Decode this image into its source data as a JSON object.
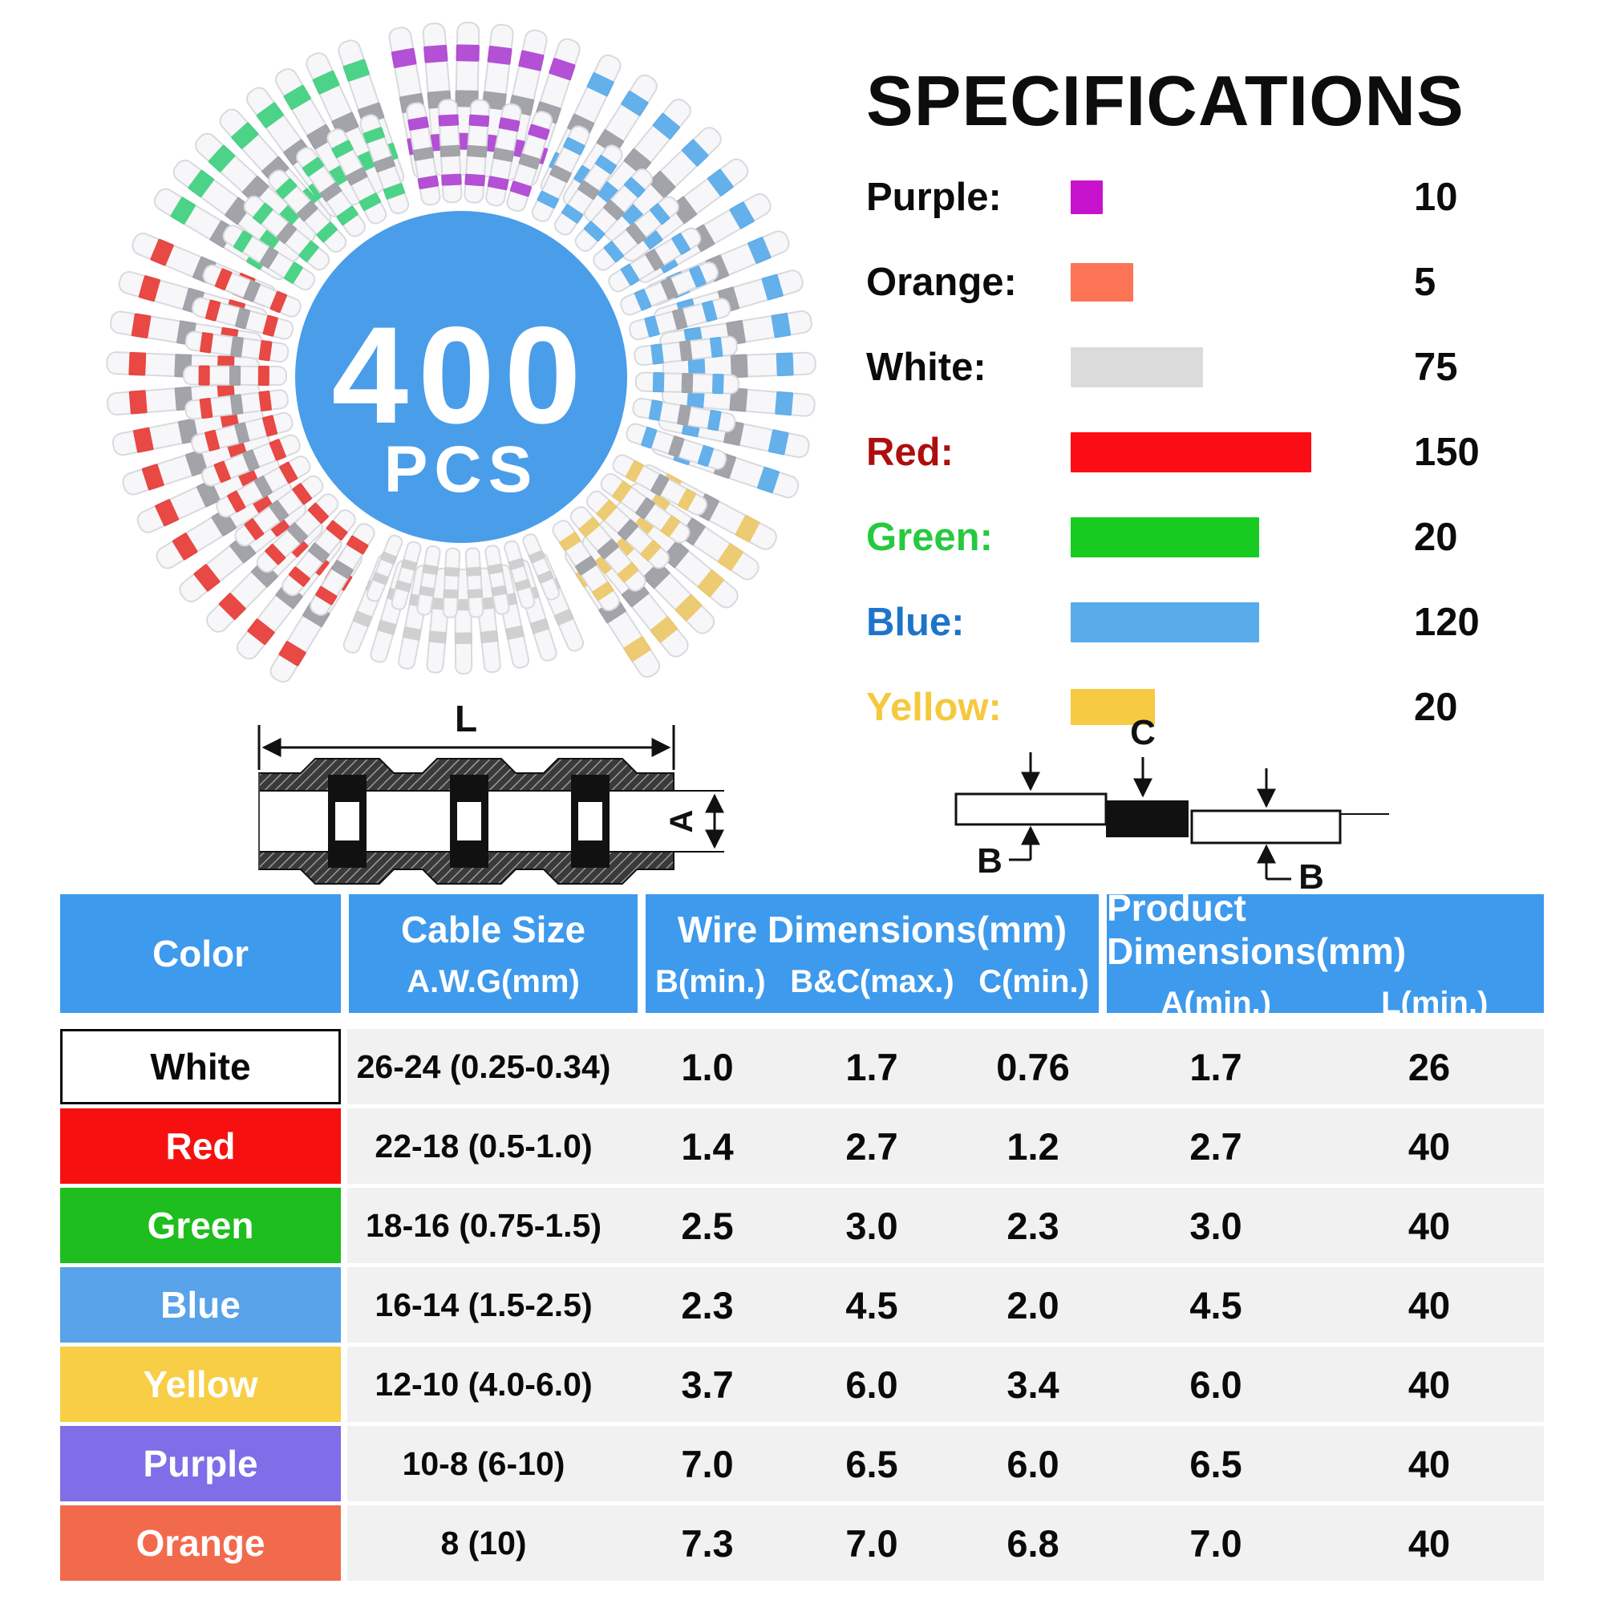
{
  "badge": {
    "count": "400",
    "unit": "PCS",
    "circle_color": "#4a9de9"
  },
  "specifications": {
    "title": "SPECIFICATIONS",
    "items": [
      {
        "name": "purple",
        "label": "Purple:",
        "count": "10",
        "label_color": "#0b0b0b",
        "swatch_color": "#c713ce",
        "swatch_w": 40,
        "swatch_h": 42
      },
      {
        "name": "orange",
        "label": "Orange:",
        "count": "5",
        "label_color": "#0b0b0b",
        "swatch_color": "#fb7456",
        "swatch_w": 78,
        "swatch_h": 48
      },
      {
        "name": "white",
        "label": "White:",
        "count": "75",
        "label_color": "#0b0b0b",
        "swatch_color": "#dbdbdb",
        "swatch_w": 165,
        "swatch_h": 50
      },
      {
        "name": "red",
        "label": "Red:",
        "count": "150",
        "label_color": "#ad0f0f",
        "swatch_color": "#fb0d15",
        "swatch_w": 300,
        "swatch_h": 50
      },
      {
        "name": "green",
        "label": "Green:",
        "count": "20",
        "label_color": "#27c93f",
        "swatch_color": "#17cb20",
        "swatch_w": 235,
        "swatch_h": 50
      },
      {
        "name": "blue",
        "label": "Blue:",
        "count": "120",
        "label_color": "#1c75c9",
        "swatch_color": "#58abe9",
        "swatch_w": 235,
        "swatch_h": 50
      },
      {
        "name": "yellow",
        "label": "Yellow:",
        "count": "20",
        "label_color": "#f5c93e",
        "swatch_color": "#f6ca43",
        "swatch_w": 105,
        "swatch_h": 45
      }
    ]
  },
  "diagrams": {
    "length": {
      "l_label": "L",
      "a_label": "A"
    },
    "joint": {
      "c_label": "C",
      "b_left_label": "B",
      "b_right_label": "B"
    }
  },
  "table": {
    "headers": {
      "header_bg": "#3e9aec",
      "color": "Color",
      "cable_size": "Cable Size",
      "cable_unit": "A.W.G(mm)",
      "wire": "Wire Dimensions(mm)",
      "b_min": "B(min.)",
      "bc_max": "B&C(max.)",
      "c_min": "C(min.)",
      "product": "Product Dimensions(mm)",
      "a_min": "A(min.)",
      "l_min": "L(min.)"
    },
    "rows": [
      {
        "color": "White",
        "bg": "#ffffff",
        "text_color": "#0a0a0a",
        "cable": "26-24 (0.25-0.34)",
        "b": "1.0",
        "bc": "1.7",
        "c": "0.76",
        "a": "1.7",
        "l": "26"
      },
      {
        "color": "Red",
        "bg": "#f6100f",
        "text_color": "#ffffff",
        "cable": "22-18 (0.5-1.0)",
        "b": "1.4",
        "bc": "2.7",
        "c": "1.2",
        "a": "2.7",
        "l": "40"
      },
      {
        "color": "Green",
        "bg": "#1dbe1d",
        "text_color": "#ffffff",
        "cable": "18-16 (0.75-1.5)",
        "b": "2.5",
        "bc": "3.0",
        "c": "2.3",
        "a": "3.0",
        "l": "40"
      },
      {
        "color": "Blue",
        "bg": "#58a3e9",
        "text_color": "#ffffff",
        "cable": "16-14 (1.5-2.5)",
        "b": "2.3",
        "bc": "4.5",
        "c": "2.0",
        "a": "4.5",
        "l": "40"
      },
      {
        "color": "Yellow",
        "bg": "#f7ce46",
        "text_color": "#ffffff",
        "cable": "12-10 (4.0-6.0)",
        "b": "3.7",
        "bc": "6.0",
        "c": "3.4",
        "a": "6.0",
        "l": "40"
      },
      {
        "color": "Purple",
        "bg": "#7e6ee7",
        "text_color": "#ffffff",
        "cable": "10-8 (6-10)",
        "b": "7.0",
        "bc": "6.5",
        "c": "6.0",
        "a": "6.5",
        "l": "40"
      },
      {
        "color": "Orange",
        "bg": "#f26a4c",
        "text_color": "#ffffff",
        "cable": "8 (10)",
        "b": "7.3",
        "bc": "7.0",
        "c": "6.8",
        "a": "7.0",
        "l": "40"
      }
    ]
  },
  "wheel": {
    "tube_fill": "#f7f7fa",
    "tube_stroke": "#d9dade",
    "solder_band": "#9b9ba3",
    "sectors": [
      {
        "name": "green",
        "band": "#3ecf7e",
        "start": 298,
        "end": 344,
        "outer": 8,
        "inner": 6,
        "small": false
      },
      {
        "name": "purple",
        "band": "#ad41d1",
        "start": 347,
        "end": 381,
        "outer": 6,
        "inner": 5,
        "small": false
      },
      {
        "name": "blue",
        "band": "#57a9e8",
        "start": 22,
        "end": 112,
        "outer": 13,
        "inner": 11,
        "small": false
      },
      {
        "name": "yellow",
        "band": "#ebc766",
        "start": 115,
        "end": 150,
        "outer": 6,
        "inner": 5,
        "small": false
      },
      {
        "name": "white",
        "band": "#cccccc",
        "start": 154,
        "end": 205,
        "outer": 9,
        "inner": 8,
        "small": true
      },
      {
        "name": "red",
        "band": "#e63a34",
        "start": 208,
        "end": 296,
        "outer": 13,
        "inner": 12,
        "small": false
      }
    ]
  }
}
